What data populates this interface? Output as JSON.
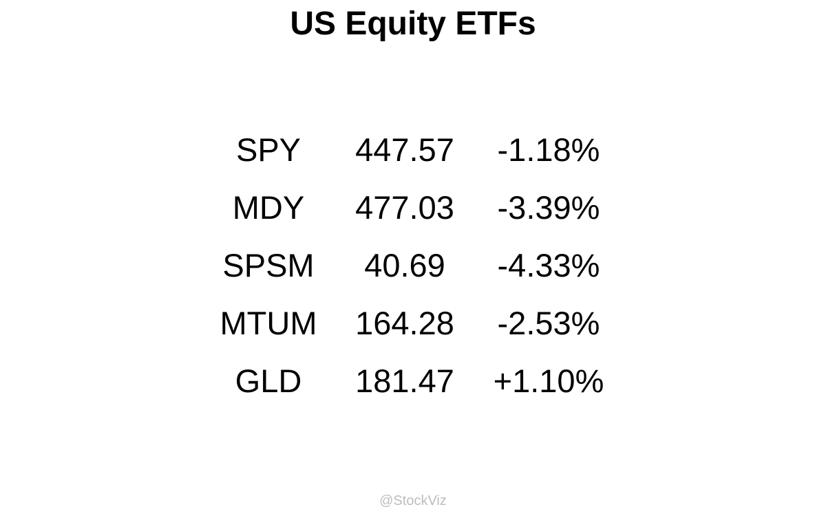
{
  "title": "US Equity ETFs",
  "watermark": "@StockViz",
  "chart_data": {
    "type": "table",
    "title": "US Equity ETFs",
    "columns": [],
    "rows": [
      {
        "ticker": "SPY",
        "price": "447.57",
        "change": "-1.18%"
      },
      {
        "ticker": "MDY",
        "price": "477.03",
        "change": "-3.39%"
      },
      {
        "ticker": "SPSM",
        "price": "40.69",
        "change": "-4.33%"
      },
      {
        "ticker": "MTUM",
        "price": "164.28",
        "change": "-2.53%"
      },
      {
        "ticker": "GLD",
        "price": "181.47",
        "change": "+1.10%"
      }
    ]
  }
}
